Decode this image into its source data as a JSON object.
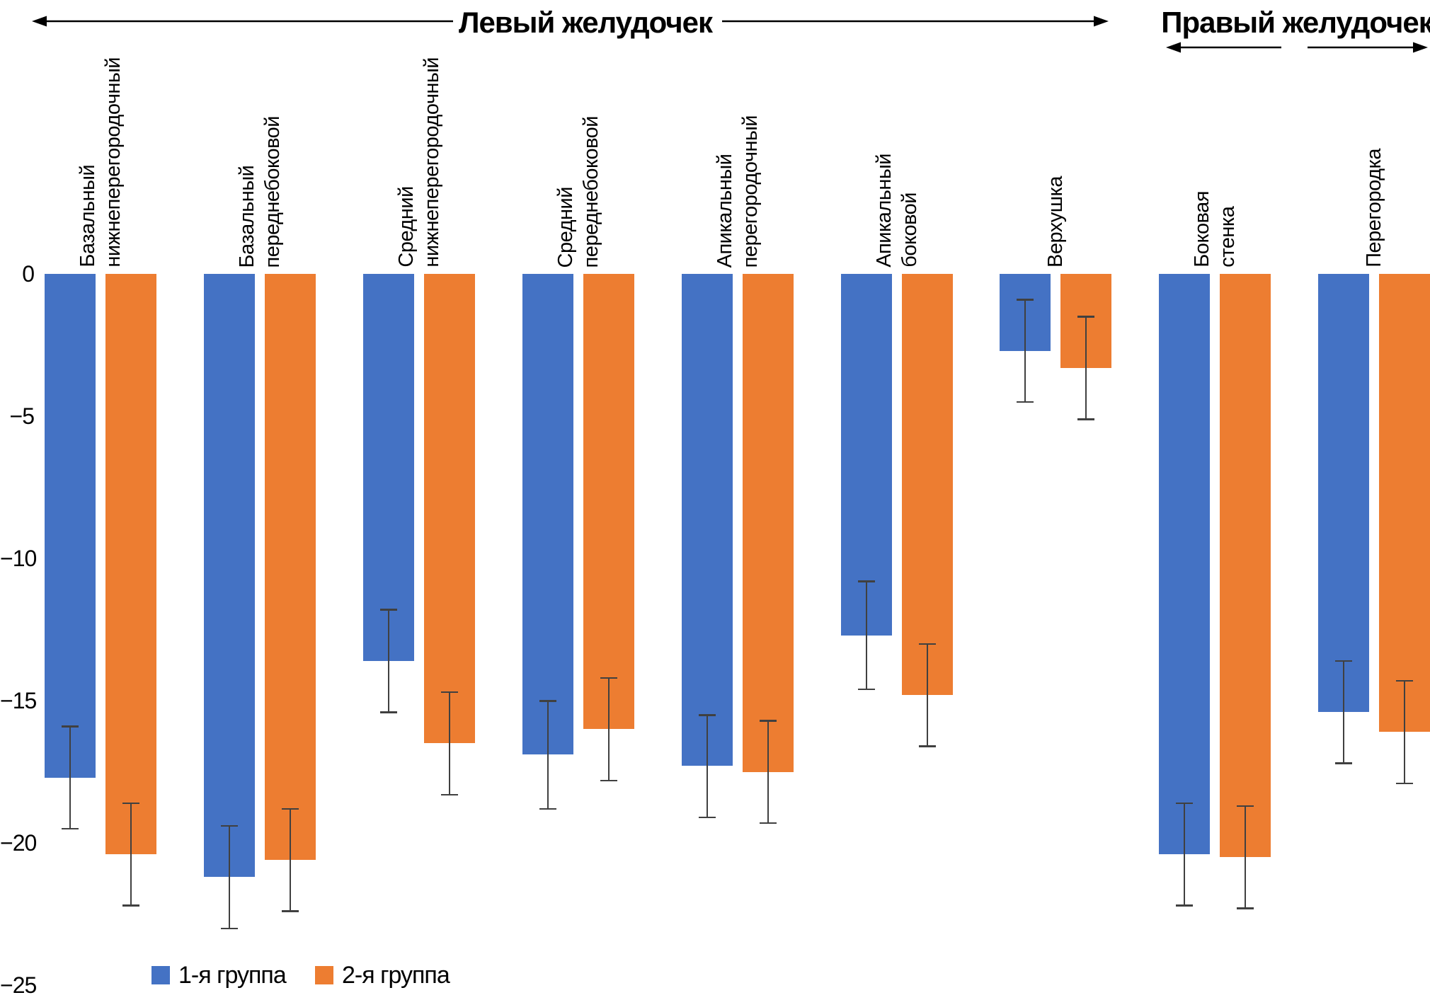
{
  "header": {
    "left_title": "Левый желудочек",
    "right_title": "Правый желудочек"
  },
  "axis": {
    "tick_labels": [
      "0",
      "−5",
      "−10",
      "−15",
      "−20",
      "−25"
    ]
  },
  "legend": {
    "items": [
      {
        "label": "1-я группа",
        "color": "#4472C4"
      },
      {
        "label": "2-я группа",
        "color": "#ED7D31"
      }
    ]
  },
  "chart_data": {
    "type": "bar",
    "orientation": "vertical",
    "title": "",
    "xlabel": "",
    "ylabel": "",
    "ylim": [
      -25,
      0
    ],
    "yticks": [
      0,
      -5,
      -10,
      -15,
      -20,
      -25
    ],
    "grid": false,
    "legend_position": "bottom",
    "error_bars": true,
    "sections": [
      {
        "title": "Левый желудочек",
        "category_indexes": [
          0,
          1,
          2,
          3,
          4,
          5,
          6
        ]
      },
      {
        "title": "Правый желудочек",
        "category_indexes": [
          7,
          8
        ]
      }
    ],
    "categories": [
      "Базальный\nнижнеперегородочный",
      "Базальный\nпереднебоковой",
      "Средний\nнижнеперегородочный",
      "Средний\nпереднебоковой",
      "Апикальный\nперегородочный",
      "Апикальный\nбоковой",
      "Верхушка",
      "Боковая\nстенка",
      "Перегородка"
    ],
    "series": [
      {
        "name": "1-я группа",
        "color": "#4472C4",
        "values": [
          -17.7,
          -21.2,
          -13.6,
          -16.9,
          -17.3,
          -12.7,
          -2.7,
          -20.4,
          -15.4
        ],
        "errors": [
          1.8,
          1.8,
          1.8,
          1.9,
          1.8,
          1.9,
          1.8,
          1.8,
          1.8
        ]
      },
      {
        "name": "2-я группа",
        "color": "#ED7D31",
        "values": [
          -20.4,
          -20.6,
          -16.5,
          -16.0,
          -17.5,
          -14.8,
          -3.3,
          -20.5,
          -16.1
        ],
        "errors": [
          1.8,
          1.8,
          1.8,
          1.8,
          1.8,
          1.8,
          1.8,
          1.8,
          1.8
        ]
      }
    ]
  }
}
